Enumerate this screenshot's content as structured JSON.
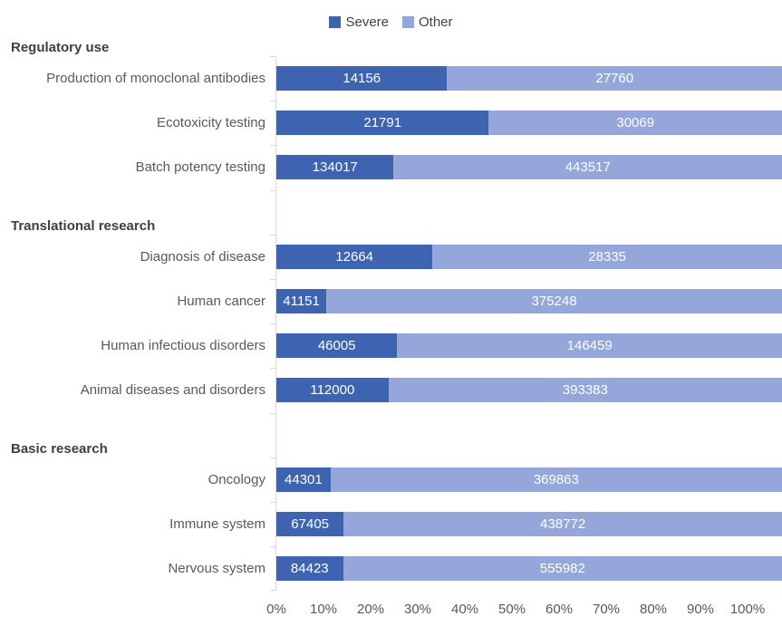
{
  "legend": {
    "position": "top"
  },
  "colors": {
    "severe": "#3E63B0",
    "other": "#95A6DB",
    "axis": "#D9D9D9",
    "category_label": "#595959",
    "group_label": "#3F3F3F",
    "value_label": "#FFFFFF"
  },
  "chart_data": {
    "type": "bar",
    "orientation": "horizontal",
    "stacking": "100%",
    "title": "",
    "xlabel": "",
    "ylabel": "",
    "xlim": [
      0,
      100
    ],
    "grid": false,
    "legend_position": "top",
    "x_tick_labels": [
      "0%",
      "10%",
      "20%",
      "30%",
      "40%",
      "50%",
      "60%",
      "70%",
      "80%",
      "90%",
      "100%"
    ],
    "series": [
      {
        "name": "Severe",
        "color": "#3E63B0"
      },
      {
        "name": "Other",
        "color": "#95A6DB"
      }
    ],
    "groups": [
      {
        "label": "Regulatory use",
        "rows": [
          {
            "category": "Production of monoclonal antibodies",
            "severe": 14156,
            "other": 27760
          },
          {
            "category": "Ecotoxicity testing",
            "severe": 21791,
            "other": 30069
          },
          {
            "category": "Batch potency testing",
            "severe": 134017,
            "other": 443517
          }
        ]
      },
      {
        "label": "Translational research",
        "rows": [
          {
            "category": "Diagnosis of disease",
            "severe": 12664,
            "other": 28335
          },
          {
            "category": "Human cancer",
            "severe": 41151,
            "other": 375248
          },
          {
            "category": "Human infectious disorders",
            "severe": 46005,
            "other": 146459
          },
          {
            "category": "Animal diseases and disorders",
            "severe": 112000,
            "other": 393383
          }
        ]
      },
      {
        "label": "Basic research",
        "rows": [
          {
            "category": "Oncology",
            "severe": 44301,
            "other": 369863
          },
          {
            "category": "Immune system",
            "severe": 67405,
            "other": 438772
          },
          {
            "category": "Nervous system",
            "severe": 84423,
            "other": 555982
          }
        ]
      }
    ]
  }
}
